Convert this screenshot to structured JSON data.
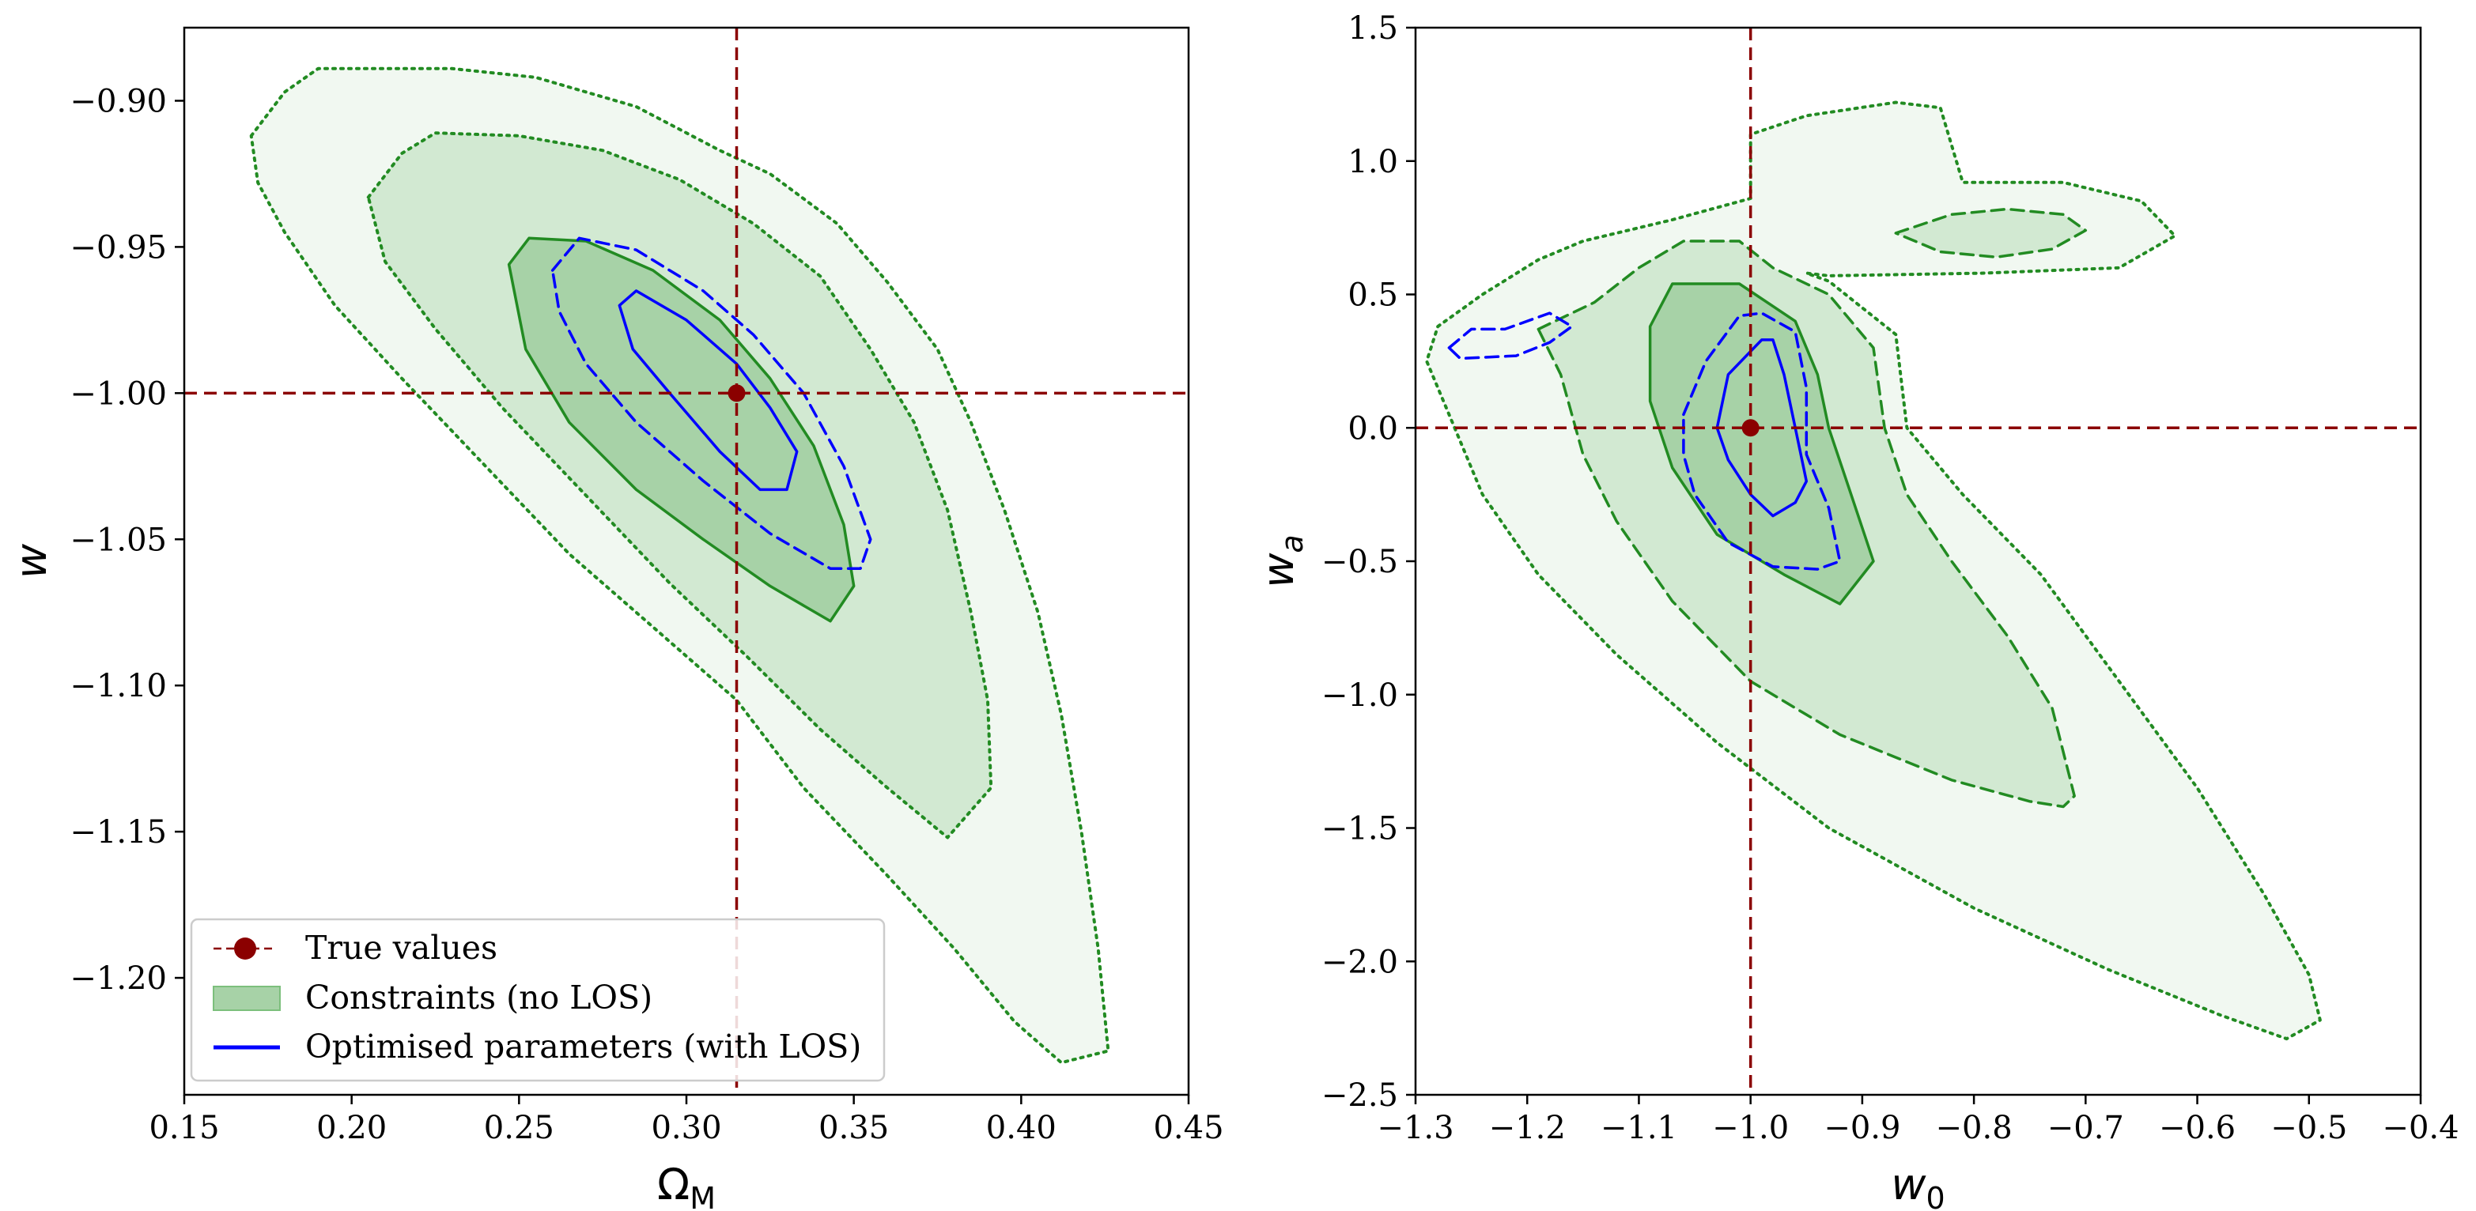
{
  "chart_data": [
    {
      "type": "contour",
      "panel": "left",
      "xlabel": "Ω",
      "xlabel_sub": "M",
      "ylabel": "w",
      "xlim": [
        0.15,
        0.45
      ],
      "ylim": [
        -1.24,
        -0.875
      ],
      "xticks": [
        0.15,
        0.2,
        0.25,
        0.3,
        0.35,
        0.4,
        0.45
      ],
      "xtick_labels": [
        "0.15",
        "0.20",
        "0.25",
        "0.30",
        "0.35",
        "0.40",
        "0.45"
      ],
      "yticks": [
        -0.9,
        -0.95,
        -1.0,
        -1.05,
        -1.1,
        -1.15,
        -1.2
      ],
      "ytick_labels": [
        "−0.90",
        "−0.95",
        "−1.00",
        "−1.05",
        "−1.10",
        "−1.15",
        "−1.20"
      ],
      "true_values": {
        "x": 0.315,
        "y": -1.0
      },
      "contours": [
        {
          "name": "no LOS outer",
          "color": "#228b22",
          "fill": "#f1f8f1",
          "style": "dotted",
          "points": [
            [
              0.17,
              -0.912
            ],
            [
              0.18,
              -0.897
            ],
            [
              0.19,
              -0.889
            ],
            [
              0.23,
              -0.889
            ],
            [
              0.255,
              -0.892
            ],
            [
              0.285,
              -0.902
            ],
            [
              0.31,
              -0.917
            ],
            [
              0.325,
              -0.925
            ],
            [
              0.345,
              -0.942
            ],
            [
              0.36,
              -0.962
            ],
            [
              0.375,
              -0.985
            ],
            [
              0.385,
              -1.01
            ],
            [
              0.395,
              -1.04
            ],
            [
              0.405,
              -1.075
            ],
            [
              0.412,
              -1.11
            ],
            [
              0.418,
              -1.15
            ],
            [
              0.423,
              -1.19
            ],
            [
              0.426,
              -1.225
            ],
            [
              0.412,
              -1.229
            ],
            [
              0.398,
              -1.215
            ],
            [
              0.38,
              -1.19
            ],
            [
              0.36,
              -1.165
            ],
            [
              0.335,
              -1.135
            ],
            [
              0.315,
              -1.105
            ],
            [
              0.29,
              -1.08
            ],
            [
              0.265,
              -1.055
            ],
            [
              0.24,
              -1.025
            ],
            [
              0.215,
              -0.995
            ],
            [
              0.195,
              -0.97
            ],
            [
              0.18,
              -0.945
            ],
            [
              0.172,
              -0.928
            ]
          ]
        },
        {
          "name": "no LOS 2sigma",
          "color": "#228b22",
          "fill": "#d2e9d2",
          "style": "dotted",
          "points": [
            [
              0.205,
              -0.933
            ],
            [
              0.215,
              -0.918
            ],
            [
              0.225,
              -0.911
            ],
            [
              0.25,
              -0.912
            ],
            [
              0.275,
              -0.917
            ],
            [
              0.298,
              -0.927
            ],
            [
              0.32,
              -0.942
            ],
            [
              0.34,
              -0.96
            ],
            [
              0.355,
              -0.985
            ],
            [
              0.368,
              -1.01
            ],
            [
              0.378,
              -1.04
            ],
            [
              0.385,
              -1.075
            ],
            [
              0.39,
              -1.105
            ],
            [
              0.391,
              -1.135
            ],
            [
              0.378,
              -1.152
            ],
            [
              0.36,
              -1.135
            ],
            [
              0.34,
              -1.115
            ],
            [
              0.318,
              -1.09
            ],
            [
              0.295,
              -1.065
            ],
            [
              0.27,
              -1.035
            ],
            [
              0.245,
              -1.005
            ],
            [
              0.225,
              -0.978
            ],
            [
              0.21,
              -0.955
            ]
          ]
        },
        {
          "name": "no LOS 1sigma",
          "color": "#228b22",
          "fill": "#a7d2a7",
          "style": "solid",
          "points": [
            [
              0.247,
              -0.956
            ],
            [
              0.253,
              -0.947
            ],
            [
              0.27,
              -0.948
            ],
            [
              0.29,
              -0.958
            ],
            [
              0.31,
              -0.975
            ],
            [
              0.325,
              -0.995
            ],
            [
              0.338,
              -1.018
            ],
            [
              0.347,
              -1.045
            ],
            [
              0.35,
              -1.066
            ],
            [
              0.343,
              -1.078
            ],
            [
              0.325,
              -1.066
            ],
            [
              0.305,
              -1.05
            ],
            [
              0.285,
              -1.033
            ],
            [
              0.265,
              -1.01
            ],
            [
              0.252,
              -0.985
            ]
          ]
        },
        {
          "name": "LOS 2sigma",
          "color": "#0000ff",
          "fill": "none",
          "style": "dashed",
          "points": [
            [
              0.26,
              -0.958
            ],
            [
              0.268,
              -0.947
            ],
            [
              0.285,
              -0.951
            ],
            [
              0.305,
              -0.965
            ],
            [
              0.32,
              -0.98
            ],
            [
              0.335,
              -1.0
            ],
            [
              0.347,
              -1.025
            ],
            [
              0.355,
              -1.05
            ],
            [
              0.352,
              -1.06
            ],
            [
              0.343,
              -1.06
            ],
            [
              0.325,
              -1.048
            ],
            [
              0.305,
              -1.03
            ],
            [
              0.285,
              -1.01
            ],
            [
              0.27,
              -0.99
            ],
            [
              0.262,
              -0.972
            ]
          ]
        },
        {
          "name": "LOS 1sigma",
          "color": "#0000ff",
          "fill": "none",
          "style": "solid",
          "points": [
            [
              0.28,
              -0.97
            ],
            [
              0.285,
              -0.965
            ],
            [
              0.3,
              -0.975
            ],
            [
              0.315,
              -0.99
            ],
            [
              0.325,
              -1.005
            ],
            [
              0.333,
              -1.02
            ],
            [
              0.33,
              -1.033
            ],
            [
              0.322,
              -1.033
            ],
            [
              0.31,
              -1.02
            ],
            [
              0.295,
              -1.0
            ],
            [
              0.284,
              -0.985
            ]
          ]
        }
      ]
    },
    {
      "type": "contour",
      "panel": "right",
      "xlabel": "w",
      "xlabel_sub": "0",
      "ylabel": "w",
      "ylabel_sub": "a",
      "xlim": [
        -1.3,
        -0.4
      ],
      "ylim": [
        -2.5,
        1.5
      ],
      "xticks": [
        -1.3,
        -1.2,
        -1.1,
        -1.0,
        -0.9,
        -0.8,
        -0.7,
        -0.6,
        -0.5,
        -0.4
      ],
      "xtick_labels": [
        "−1.3",
        "−1.2",
        "−1.1",
        "−1.0",
        "−0.9",
        "−0.8",
        "−0.7",
        "−0.6",
        "−0.5",
        "−0.4"
      ],
      "yticks": [
        1.5,
        1.0,
        0.5,
        0.0,
        -0.5,
        -1.0,
        -1.5,
        -2.0,
        -2.5
      ],
      "ytick_labels": [
        "1.5",
        "1.0",
        "0.5",
        "0.0",
        "−0.5",
        "−1.0",
        "−1.5",
        "−2.0",
        "−2.5"
      ],
      "true_values": {
        "x": -1.0,
        "y": 0.0
      },
      "contours": [
        {
          "name": "no LOS outer",
          "color": "#228b22",
          "fill": "#f1f8f1",
          "style": "dotted",
          "points": [
            [
              -1.28,
              0.38
            ],
            [
              -1.24,
              0.5
            ],
            [
              -1.19,
              0.63
            ],
            [
              -1.15,
              0.7
            ],
            [
              -1.07,
              0.78
            ],
            [
              -1.0,
              0.86
            ],
            [
              -1.0,
              1.1
            ],
            [
              -0.95,
              1.17
            ],
            [
              -0.87,
              1.22
            ],
            [
              -0.83,
              1.2
            ],
            [
              -0.81,
              0.92
            ],
            [
              -0.72,
              0.92
            ],
            [
              -0.65,
              0.85
            ],
            [
              -0.62,
              0.72
            ],
            [
              -0.67,
              0.6
            ],
            [
              -0.79,
              0.58
            ],
            [
              -0.93,
              0.57
            ],
            [
              -0.95,
              0.58
            ],
            [
              -0.93,
              0.55
            ],
            [
              -0.87,
              0.35
            ],
            [
              -0.86,
              0.0
            ],
            [
              -0.81,
              -0.25
            ],
            [
              -0.74,
              -0.55
            ],
            [
              -0.67,
              -0.95
            ],
            [
              -0.6,
              -1.35
            ],
            [
              -0.54,
              -1.75
            ],
            [
              -0.5,
              -2.05
            ],
            [
              -0.49,
              -2.22
            ],
            [
              -0.52,
              -2.29
            ],
            [
              -0.58,
              -2.2
            ],
            [
              -0.68,
              -2.03
            ],
            [
              -0.8,
              -1.8
            ],
            [
              -0.93,
              -1.5
            ],
            [
              -1.03,
              -1.18
            ],
            [
              -1.12,
              -0.85
            ],
            [
              -1.19,
              -0.55
            ],
            [
              -1.24,
              -0.25
            ],
            [
              -1.27,
              0.05
            ],
            [
              -1.29,
              0.25
            ]
          ]
        },
        {
          "name": "no LOS 2sigma",
          "color": "#228b22",
          "fill": "#d2e9d2",
          "style": "dashed",
          "points": [
            [
              -1.19,
              0.37
            ],
            [
              -1.14,
              0.47
            ],
            [
              -1.1,
              0.6
            ],
            [
              -1.06,
              0.7
            ],
            [
              -1.01,
              0.7
            ],
            [
              -0.98,
              0.6
            ],
            [
              -0.93,
              0.5
            ],
            [
              -0.89,
              0.3
            ],
            [
              -0.88,
              0.0
            ],
            [
              -0.86,
              -0.25
            ],
            [
              -0.82,
              -0.5
            ],
            [
              -0.77,
              -0.78
            ],
            [
              -0.73,
              -1.05
            ],
            [
              -0.71,
              -1.38
            ],
            [
              -0.72,
              -1.42
            ],
            [
              -0.75,
              -1.4
            ],
            [
              -0.82,
              -1.32
            ],
            [
              -0.92,
              -1.15
            ],
            [
              -1.0,
              -0.95
            ],
            [
              -1.07,
              -0.65
            ],
            [
              -1.12,
              -0.35
            ],
            [
              -1.15,
              -0.1
            ],
            [
              -1.17,
              0.2
            ]
          ]
        },
        {
          "name": "no LOS 2sigma island",
          "color": "#228b22",
          "fill": "#d2e9d2",
          "style": "dashed",
          "points": [
            [
              -0.87,
              0.73
            ],
            [
              -0.82,
              0.8
            ],
            [
              -0.77,
              0.82
            ],
            [
              -0.72,
              0.8
            ],
            [
              -0.7,
              0.74
            ],
            [
              -0.73,
              0.67
            ],
            [
              -0.78,
              0.64
            ],
            [
              -0.83,
              0.66
            ]
          ]
        },
        {
          "name": "no LOS 1sigma",
          "color": "#228b22",
          "fill": "#a7d2a7",
          "style": "solid",
          "points": [
            [
              -1.09,
              0.38
            ],
            [
              -1.07,
              0.54
            ],
            [
              -1.01,
              0.54
            ],
            [
              -0.96,
              0.4
            ],
            [
              -0.94,
              0.2
            ],
            [
              -0.93,
              0.0
            ],
            [
              -0.91,
              -0.25
            ],
            [
              -0.89,
              -0.5
            ],
            [
              -0.92,
              -0.66
            ],
            [
              -0.97,
              -0.55
            ],
            [
              -1.03,
              -0.4
            ],
            [
              -1.07,
              -0.15
            ],
            [
              -1.09,
              0.1
            ]
          ]
        },
        {
          "name": "LOS 2sigma",
          "color": "#0000ff",
          "fill": "none",
          "style": "dashed",
          "points": [
            [
              -1.06,
              0.05
            ],
            [
              -1.04,
              0.25
            ],
            [
              -1.01,
              0.42
            ],
            [
              -0.99,
              0.43
            ],
            [
              -0.96,
              0.36
            ],
            [
              -0.95,
              0.15
            ],
            [
              -0.95,
              -0.1
            ],
            [
              -0.93,
              -0.3
            ],
            [
              -0.92,
              -0.5
            ],
            [
              -0.94,
              -0.53
            ],
            [
              -0.98,
              -0.52
            ],
            [
              -1.02,
              -0.43
            ],
            [
              -1.05,
              -0.25
            ],
            [
              -1.06,
              -0.1
            ]
          ]
        },
        {
          "name": "LOS 2sigma island",
          "color": "#0000ff",
          "fill": "none",
          "style": "dashed",
          "points": [
            [
              -1.27,
              0.3
            ],
            [
              -1.25,
              0.37
            ],
            [
              -1.22,
              0.37
            ],
            [
              -1.18,
              0.43
            ],
            [
              -1.16,
              0.38
            ],
            [
              -1.18,
              0.32
            ],
            [
              -1.21,
              0.27
            ],
            [
              -1.26,
              0.26
            ]
          ]
        },
        {
          "name": "LOS 1sigma",
          "color": "#0000ff",
          "fill": "none",
          "style": "solid",
          "points": [
            [
              -1.03,
              0.0
            ],
            [
              -1.02,
              0.2
            ],
            [
              -0.99,
              0.33
            ],
            [
              -0.98,
              0.33
            ],
            [
              -0.97,
              0.2
            ],
            [
              -0.96,
              0.0
            ],
            [
              -0.95,
              -0.2
            ],
            [
              -0.96,
              -0.28
            ],
            [
              -0.98,
              -0.33
            ],
            [
              -1.0,
              -0.25
            ],
            [
              -1.02,
              -0.12
            ]
          ]
        }
      ]
    }
  ],
  "legend": {
    "position": "lower-left",
    "items": [
      {
        "label": "True values",
        "kind": "marker",
        "color": "#8b0000"
      },
      {
        "label": "Constraints (no LOS)",
        "kind": "patch",
        "color": "#228b22",
        "fill": "#a7d2a7"
      },
      {
        "label": "Optimised parameters (with LOS)",
        "kind": "line",
        "color": "#0000ff"
      }
    ]
  },
  "colors": {
    "truth": "#8b0000",
    "green": "#228b22",
    "blue": "#0000ff"
  }
}
